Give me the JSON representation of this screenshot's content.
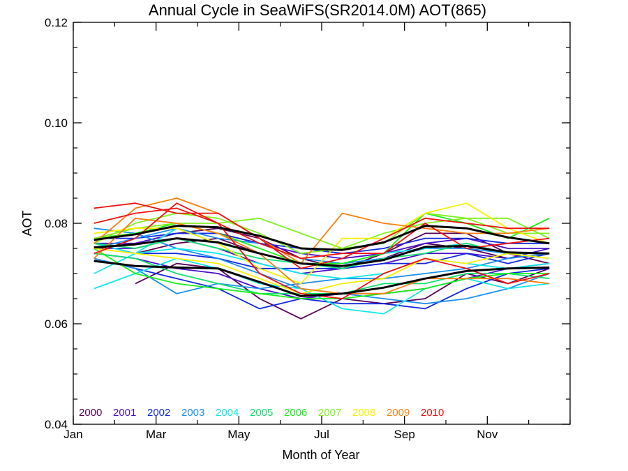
{
  "chart_data": {
    "type": "line",
    "title": "Annual Cycle in SeaWiFS(SR2014.0M) AOT(865)",
    "xlabel": "Month of Year",
    "ylabel": "AOT",
    "xlim": [
      1,
      13
    ],
    "ylim": [
      0.04,
      0.12
    ],
    "x": [
      1.5,
      2.5,
      3.5,
      4.5,
      5.5,
      6.5,
      7.5,
      8.5,
      9.5,
      10.5,
      11.5,
      12.5
    ],
    "xticks": [
      {
        "value": 1,
        "label": "Jan"
      },
      {
        "value": 3,
        "label": "Mar"
      },
      {
        "value": 5,
        "label": "May"
      },
      {
        "value": 7,
        "label": "Jul"
      },
      {
        "value": 9,
        "label": "Sep"
      },
      {
        "value": 11,
        "label": "Nov"
      }
    ],
    "yticks": [
      {
        "value": 0.04,
        "label": "0.04"
      },
      {
        "value": 0.06,
        "label": "0.06"
      },
      {
        "value": 0.08,
        "label": "0.08"
      },
      {
        "value": 0.1,
        "label": "0.10"
      },
      {
        "value": 0.12,
        "label": "0.12"
      }
    ],
    "grid": false,
    "legend_position": "bottom-left",
    "series": [
      {
        "name": "2000",
        "color": "#5a0058",
        "values": [
          null,
          0.068,
          0.072,
          0.071,
          0.065,
          0.061,
          0.065,
          0.064,
          0.065,
          0.07,
          0.068,
          0.071
        ]
      },
      {
        "name": "2000",
        "color": "#5a0058",
        "values": [
          null,
          0.074,
          0.076,
          0.077,
          0.074,
          0.072,
          0.072,
          0.073,
          0.076,
          0.075,
          0.073,
          0.074
        ]
      },
      {
        "name": "2000",
        "color": "#5a0058",
        "values": [
          null,
          0.076,
          0.078,
          0.079,
          0.077,
          0.073,
          0.071,
          0.074,
          0.078,
          0.078,
          0.074,
          0.072
        ]
      },
      {
        "name": "2001",
        "color": "#4a10c8",
        "values": [
          0.074,
          0.073,
          0.071,
          0.07,
          0.067,
          0.065,
          0.066,
          0.066,
          0.067,
          0.069,
          0.071,
          0.072
        ]
      },
      {
        "name": "2001",
        "color": "#4a10c8",
        "values": [
          0.075,
          0.075,
          0.077,
          0.075,
          0.072,
          0.07,
          0.071,
          0.072,
          0.074,
          0.074,
          0.073,
          0.075
        ]
      },
      {
        "name": "2001",
        "color": "#4a10c8",
        "values": [
          0.076,
          0.076,
          0.078,
          0.078,
          0.076,
          0.074,
          0.073,
          0.074,
          0.076,
          0.077,
          0.075,
          0.075
        ]
      },
      {
        "name": "2002",
        "color": "#1028e0",
        "values": [
          0.073,
          0.071,
          0.069,
          0.067,
          0.063,
          0.065,
          0.064,
          0.064,
          0.063,
          0.067,
          0.07,
          0.071
        ]
      },
      {
        "name": "2002",
        "color": "#1028e0",
        "values": [
          0.076,
          0.074,
          0.074,
          0.073,
          0.071,
          0.071,
          0.071,
          0.072,
          0.072,
          0.074,
          0.072,
          0.074
        ]
      },
      {
        "name": "2002",
        "color": "#1028e0",
        "values": [
          0.077,
          0.077,
          0.078,
          0.078,
          0.076,
          0.075,
          0.074,
          0.075,
          0.077,
          0.077,
          0.076,
          0.076
        ]
      },
      {
        "name": "2003",
        "color": "#1a90f0",
        "values": [
          0.079,
          0.078,
          0.075,
          0.073,
          0.07,
          0.067,
          0.066,
          0.065,
          0.064,
          0.065,
          0.067,
          0.07
        ]
      },
      {
        "name": "2003",
        "color": "#1a90f0",
        "values": [
          0.073,
          0.071,
          0.066,
          0.068,
          0.067,
          0.068,
          0.069,
          0.069,
          0.07,
          0.071,
          0.073,
          0.074
        ]
      },
      {
        "name": "2003",
        "color": "#1a90f0",
        "values": [
          0.075,
          0.077,
          0.079,
          0.077,
          0.076,
          0.073,
          0.072,
          0.073,
          0.075,
          0.075,
          0.074,
          0.074
        ]
      },
      {
        "name": "2004",
        "color": "#10e8e8",
        "values": [
          0.067,
          0.07,
          0.073,
          0.071,
          0.068,
          0.067,
          0.063,
          0.062,
          0.067,
          0.069,
          0.067,
          0.068
        ]
      },
      {
        "name": "2004",
        "color": "#10e8e8",
        "values": [
          0.07,
          0.074,
          0.075,
          0.074,
          0.072,
          0.07,
          0.069,
          0.07,
          0.073,
          0.072,
          0.071,
          0.072
        ]
      },
      {
        "name": "2004",
        "color": "#10e8e8",
        "values": [
          0.076,
          0.074,
          0.079,
          0.076,
          0.074,
          0.072,
          0.072,
          0.074,
          0.075,
          0.076,
          0.074,
          0.073
        ]
      },
      {
        "name": "2005",
        "color": "#10e070",
        "values": [
          0.074,
          0.073,
          0.07,
          0.068,
          0.066,
          0.066,
          0.066,
          0.068,
          0.068,
          0.07,
          0.07,
          0.069
        ]
      },
      {
        "name": "2005",
        "color": "#10e070",
        "values": [
          0.076,
          0.075,
          0.077,
          0.075,
          0.073,
          0.072,
          0.071,
          0.073,
          0.074,
          0.076,
          0.074,
          0.074
        ]
      },
      {
        "name": "2006",
        "color": "#18f018",
        "values": [
          0.075,
          0.07,
          0.068,
          0.067,
          0.066,
          0.065,
          0.065,
          0.066,
          0.067,
          0.069,
          0.07,
          0.07
        ]
      },
      {
        "name": "2006",
        "color": "#18f018",
        "values": [
          0.077,
          0.078,
          0.08,
          0.078,
          0.075,
          0.072,
          0.072,
          0.074,
          0.082,
          0.08,
          0.077,
          0.081
        ]
      },
      {
        "name": "2007",
        "color": "#80f020",
        "values": [
          0.077,
          0.079,
          0.08,
          0.08,
          0.081,
          0.078,
          0.075,
          0.078,
          0.08,
          0.081,
          0.081,
          0.077
        ]
      },
      {
        "name": "2007",
        "color": "#80f020",
        "values": [
          0.076,
          0.08,
          0.082,
          0.081,
          0.078,
          0.074,
          0.075,
          0.076,
          0.082,
          0.081,
          0.078,
          0.078
        ]
      },
      {
        "name": "2008",
        "color": "#f8f000",
        "values": [
          0.078,
          0.079,
          0.079,
          0.076,
          0.071,
          0.068,
          0.077,
          0.077,
          0.082,
          0.084,
          0.079,
          0.076
        ]
      },
      {
        "name": "2008",
        "color": "#f8f000",
        "values": [
          0.075,
          0.074,
          0.073,
          0.072,
          0.069,
          0.066,
          0.068,
          0.069,
          0.073,
          0.072,
          0.074,
          0.073
        ]
      },
      {
        "name": "2009",
        "color": "#f88010",
        "values": [
          0.076,
          0.083,
          0.085,
          0.082,
          0.077,
          0.072,
          0.082,
          0.08,
          0.079,
          0.078,
          0.078,
          0.079
        ]
      },
      {
        "name": "2009",
        "color": "#f88010",
        "values": [
          0.073,
          0.081,
          0.08,
          0.078,
          0.074,
          0.067,
          0.066,
          0.066,
          0.069,
          0.069,
          0.069,
          0.068
        ]
      },
      {
        "name": "2010",
        "color": "#f01010",
        "values": [
          0.083,
          0.084,
          0.082,
          0.082,
          0.077,
          0.071,
          0.073,
          0.077,
          0.081,
          0.08,
          0.079,
          0.079
        ]
      },
      {
        "name": "2010",
        "color": "#f01010",
        "values": [
          0.08,
          0.082,
          0.083,
          0.08,
          0.076,
          0.073,
          0.074,
          0.074,
          0.08,
          0.075,
          0.076,
          0.077
        ]
      },
      {
        "name": "2010",
        "color": "#f01010",
        "values": [
          0.074,
          0.077,
          0.084,
          0.08,
          0.07,
          0.066,
          0.065,
          0.07,
          0.073,
          0.071,
          0.068,
          0.07
        ]
      },
      {
        "name": "",
        "color": "#000000",
        "bold": true,
        "values": [
          0.0767,
          0.0778,
          0.0795,
          0.0792,
          0.0775,
          0.075,
          0.0747,
          0.0762,
          0.0795,
          0.079,
          0.0772,
          0.076
        ]
      },
      {
        "name": "",
        "color": "#000000",
        "bold": true,
        "values": [
          0.0752,
          0.0758,
          0.077,
          0.0762,
          0.074,
          0.072,
          0.0715,
          0.0727,
          0.0753,
          0.0755,
          0.0742,
          0.074
        ]
      },
      {
        "name": "",
        "color": "#000000",
        "bold": true,
        "values": [
          0.0725,
          0.0715,
          0.0712,
          0.071,
          0.0683,
          0.0655,
          0.066,
          0.0672,
          0.069,
          0.0705,
          0.071,
          0.0712
        ]
      }
    ],
    "legend": [
      {
        "label": "2000",
        "color": "#5a0058"
      },
      {
        "label": "2001",
        "color": "#4a10c8"
      },
      {
        "label": "2002",
        "color": "#1028e0"
      },
      {
        "label": "2003",
        "color": "#1a90f0"
      },
      {
        "label": "2004",
        "color": "#10e8e8"
      },
      {
        "label": "2005",
        "color": "#10e070"
      },
      {
        "label": "2006",
        "color": "#18f018"
      },
      {
        "label": "2007",
        "color": "#80f020"
      },
      {
        "label": "2008",
        "color": "#f8f000"
      },
      {
        "label": "2009",
        "color": "#f88010"
      },
      {
        "label": "2010",
        "color": "#f01010"
      }
    ]
  }
}
